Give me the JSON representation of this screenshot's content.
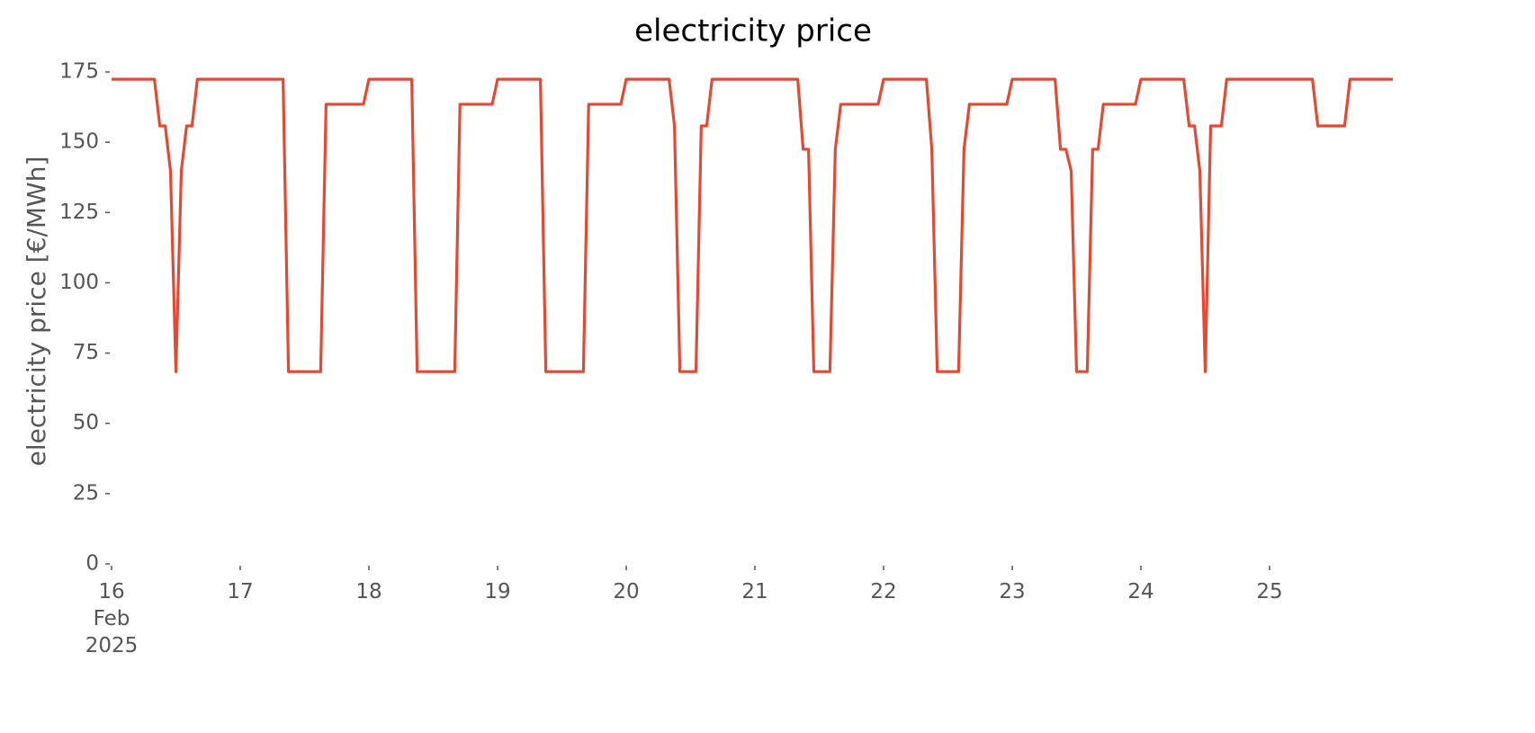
{
  "chart_data": {
    "type": "line",
    "title": "electricity price",
    "ylabel": "electricity price [€/MWh]",
    "x": [
      16,
      16.333,
      16.375,
      16.417,
      16.458,
      16.5,
      16.542,
      16.583,
      16.625,
      16.667,
      17.333,
      17.375,
      17.625,
      17.667,
      17.958,
      18,
      18.333,
      18.375,
      18.667,
      18.708,
      18.958,
      19,
      19.333,
      19.375,
      19.667,
      19.708,
      19.958,
      20,
      20.333,
      20.375,
      20.417,
      20.542,
      20.583,
      20.625,
      20.667,
      21.333,
      21.375,
      21.417,
      21.458,
      21.583,
      21.625,
      21.667,
      21.958,
      22,
      22.333,
      22.375,
      22.417,
      22.583,
      22.625,
      22.667,
      22.958,
      23,
      23.333,
      23.375,
      23.417,
      23.458,
      23.5,
      23.583,
      23.625,
      23.667,
      23.708,
      23.958,
      24,
      24.333,
      24.375,
      24.417,
      24.458,
      24.5,
      24.542,
      24.625,
      24.667,
      25.333,
      25.375,
      25.583,
      25.625,
      25.958
    ],
    "series": [
      {
        "name": "electricity price",
        "color": "#e24a33",
        "values": [
          172.4,
          172.4,
          155.8,
          155.8,
          139.8,
          68.4,
          139.8,
          155.8,
          155.8,
          172.4,
          172.4,
          68.4,
          68.4,
          163.5,
          163.5,
          172.4,
          172.4,
          68.4,
          68.4,
          163.5,
          163.5,
          172.4,
          172.4,
          68.4,
          68.4,
          163.5,
          163.5,
          172.4,
          172.4,
          155.8,
          68.4,
          68.4,
          155.8,
          155.8,
          172.4,
          172.4,
          147.5,
          147.5,
          68.4,
          68.4,
          147.5,
          163.5,
          163.5,
          172.4,
          172.4,
          147.5,
          68.4,
          68.4,
          147.5,
          163.5,
          163.5,
          172.4,
          172.4,
          147.5,
          147.5,
          139.8,
          68.4,
          68.4,
          147.5,
          147.5,
          163.5,
          163.5,
          172.4,
          172.4,
          155.8,
          155.8,
          139.8,
          68.4,
          155.8,
          155.8,
          172.4,
          172.4,
          155.8,
          155.8,
          172.4,
          172.4
        ]
      }
    ],
    "xlim": [
      16,
      25.958
    ],
    "xticks": [
      {
        "value": 16,
        "label": "16\nFeb\n2025"
      },
      17,
      18,
      19,
      20,
      21,
      22,
      23,
      24,
      25
    ],
    "ylim": [
      0,
      175
    ],
    "yticks": [
      0,
      25,
      50,
      75,
      100,
      125,
      150,
      175
    ],
    "grid": false
  }
}
